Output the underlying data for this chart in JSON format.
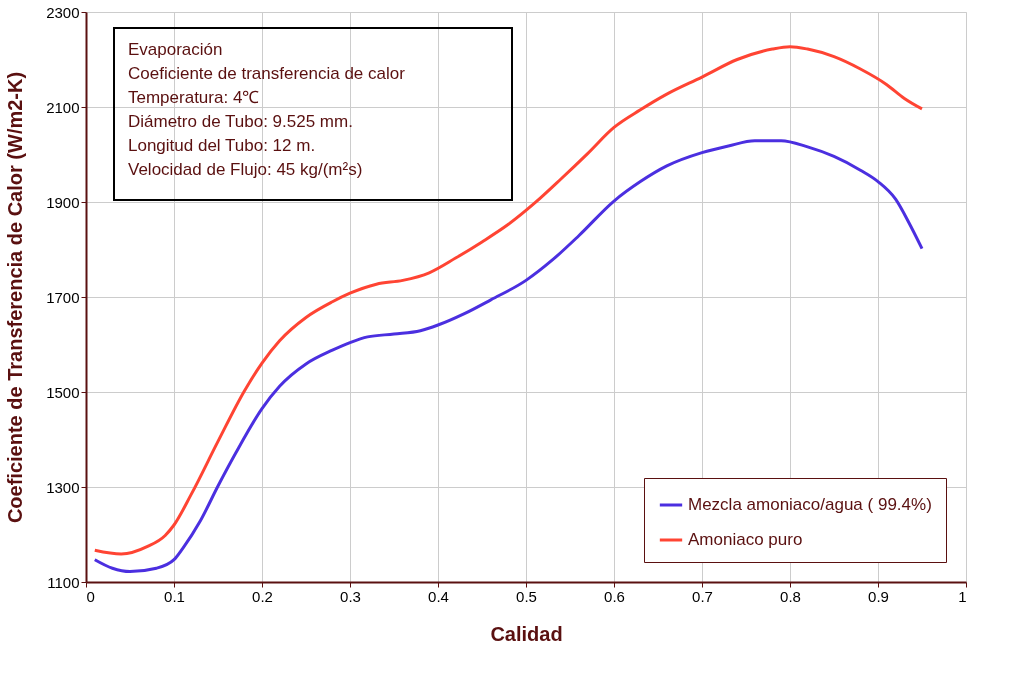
{
  "chart_data": {
    "type": "line",
    "xlabel": "Calidad",
    "ylabel": "Coeficiente de Transferencia de Calor (W/m2-K)",
    "xlim": [
      0,
      1
    ],
    "xticks": [
      0,
      0.1,
      0.2,
      0.3,
      0.4,
      0.5,
      0.6,
      0.7,
      0.8,
      0.9,
      1
    ],
    "ylim": [
      1100,
      2300
    ],
    "yticks": [
      1100,
      1300,
      1500,
      1700,
      1900,
      2100,
      2300
    ],
    "grid": true,
    "legend": "bottom right",
    "marker": "none",
    "line_style": "solid",
    "annotations": [
      "Evaporación",
      "Coeficiente de transferencia de calor",
      "Temperatura: 4℃",
      "Diámetro de Tubo: 9.525 mm.",
      "Longitud del Tubo: 12 m.",
      "Velocidad de Flujo: 45 kg/(m²s)"
    ],
    "series": [
      {
        "name": "Mezcla amoniaco/agua ( 99.4%)",
        "color": "#4b2fe0",
        "x": [
          0.01,
          0.03,
          0.05,
          0.08,
          0.1,
          0.11,
          0.13,
          0.15,
          0.17,
          0.2,
          0.22,
          0.25,
          0.28,
          0.3,
          0.32,
          0.35,
          0.38,
          0.4,
          0.43,
          0.46,
          0.5,
          0.53,
          0.56,
          0.6,
          0.63,
          0.66,
          0.7,
          0.73,
          0.76,
          0.79,
          0.82,
          0.85,
          0.88,
          0.9,
          0.92,
          0.935,
          0.95
        ],
        "values": [
          1147,
          1129,
          1122,
          1129,
          1147,
          1171,
          1229,
          1302,
          1371,
          1465,
          1512,
          1559,
          1588,
          1604,
          1616,
          1622,
          1629,
          1641,
          1665,
          1694,
          1735,
          1778,
          1829,
          1902,
          1943,
          1976,
          2004,
          2018,
          2029,
          2029,
          2016,
          1996,
          1967,
          1943,
          1906,
          1857,
          1802
        ]
      },
      {
        "name": "Amoniaco puro",
        "color": "#ff4433",
        "x": [
          0.01,
          0.04,
          0.07,
          0.09,
          0.1,
          0.12,
          0.15,
          0.18,
          0.2,
          0.22,
          0.25,
          0.28,
          0.3,
          0.33,
          0.36,
          0.39,
          0.42,
          0.45,
          0.48,
          0.51,
          0.54,
          0.57,
          0.6,
          0.63,
          0.66,
          0.7,
          0.74,
          0.78,
          0.8,
          0.82,
          0.85,
          0.88,
          0.91,
          0.93,
          0.95
        ],
        "values": [
          1167,
          1159,
          1175,
          1198,
          1220,
          1286,
          1396,
          1502,
          1561,
          1608,
          1657,
          1690,
          1708,
          1727,
          1735,
          1751,
          1782,
          1816,
          1853,
          1898,
          1949,
          2002,
          2057,
          2094,
          2127,
          2163,
          2200,
          2222,
          2227,
          2222,
          2206,
          2180,
          2147,
          2118,
          2096
        ]
      }
    ]
  }
}
